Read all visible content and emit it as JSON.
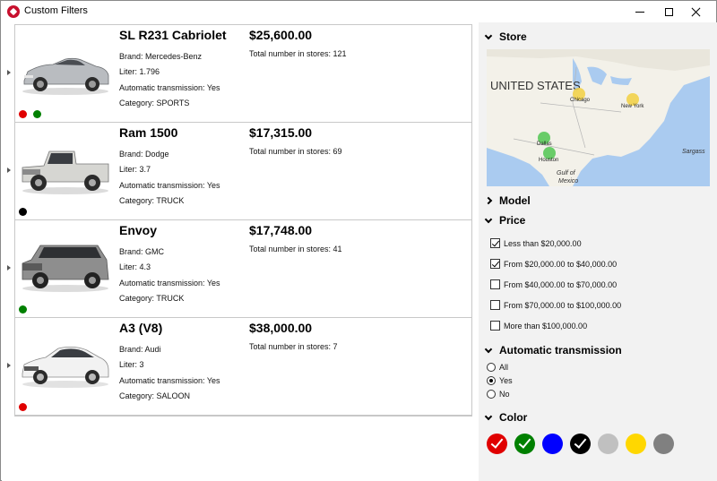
{
  "window": {
    "title": "Custom Filters"
  },
  "cars": [
    {
      "name": "SL R231 Cabriolet",
      "brand": "Brand: Mercedes-Benz",
      "liter": "Liter: 1.796",
      "automatic": "Automatic transmission: Yes",
      "category": "Category: SPORTS",
      "price": "$25,600.00",
      "stock": "Total number in stores: 121",
      "body_color": "#b9bcc0",
      "colors": [
        "#e00000",
        "#008000"
      ]
    },
    {
      "name": "Ram 1500",
      "brand": "Brand: Dodge",
      "liter": "Liter: 3.7",
      "automatic": "Automatic transmission: Yes",
      "category": "Category: TRUCK",
      "price": "$17,315.00",
      "stock": "Total number in stores: 69",
      "body_color": "#d6d6d2",
      "colors": [
        "#000000"
      ]
    },
    {
      "name": "Envoy",
      "brand": "Brand: GMC",
      "liter": "Liter: 4.3",
      "automatic": "Automatic transmission: Yes",
      "category": "Category: TRUCK",
      "price": "$17,748.00",
      "stock": "Total number in stores: 41",
      "body_color": "#8e8e8e",
      "colors": [
        "#008000"
      ]
    },
    {
      "name": "A3 (V8)",
      "brand": "Brand: Audi",
      "liter": "Liter: 3",
      "automatic": "Automatic transmission: Yes",
      "category": "Category: SALOON",
      "price": "$38,000.00",
      "stock": "Total number in stores: 7",
      "body_color": "#f2f2f2",
      "colors": [
        "#e00000"
      ]
    }
  ],
  "filters": {
    "store": {
      "label": "Store",
      "map_country": "UNITED STATES",
      "map_sea_1": "Gulf of",
      "map_sea_2": "Mexico",
      "map_sea_3": "Sargass",
      "cities": [
        "Chicago",
        "New York",
        "Dallas",
        "Houston"
      ]
    },
    "model": {
      "label": "Model"
    },
    "price": {
      "label": "Price",
      "options": [
        {
          "label": "Less than $20,000.00",
          "checked": true
        },
        {
          "label": "From $20,000.00 to $40,000.00",
          "checked": true
        },
        {
          "label": "From $40,000.00 to $70,000.00",
          "checked": false
        },
        {
          "label": "From $70,000.00 to $100,000.00",
          "checked": false
        },
        {
          "label": "More than $100,000.00",
          "checked": false
        }
      ]
    },
    "automatic": {
      "label": "Automatic transmission",
      "options": [
        {
          "label": "All",
          "selected": false
        },
        {
          "label": "Yes",
          "selected": true
        },
        {
          "label": "No",
          "selected": false
        }
      ]
    },
    "color": {
      "label": "Color",
      "swatches": [
        {
          "color": "#e00000",
          "checked": true
        },
        {
          "color": "#008000",
          "checked": true
        },
        {
          "color": "#0000ff",
          "checked": false
        },
        {
          "color": "#000000",
          "checked": true
        },
        {
          "color": "#c0c0c0",
          "checked": false
        },
        {
          "color": "#ffd700",
          "checked": false
        },
        {
          "color": "#808080",
          "checked": false
        }
      ]
    }
  }
}
